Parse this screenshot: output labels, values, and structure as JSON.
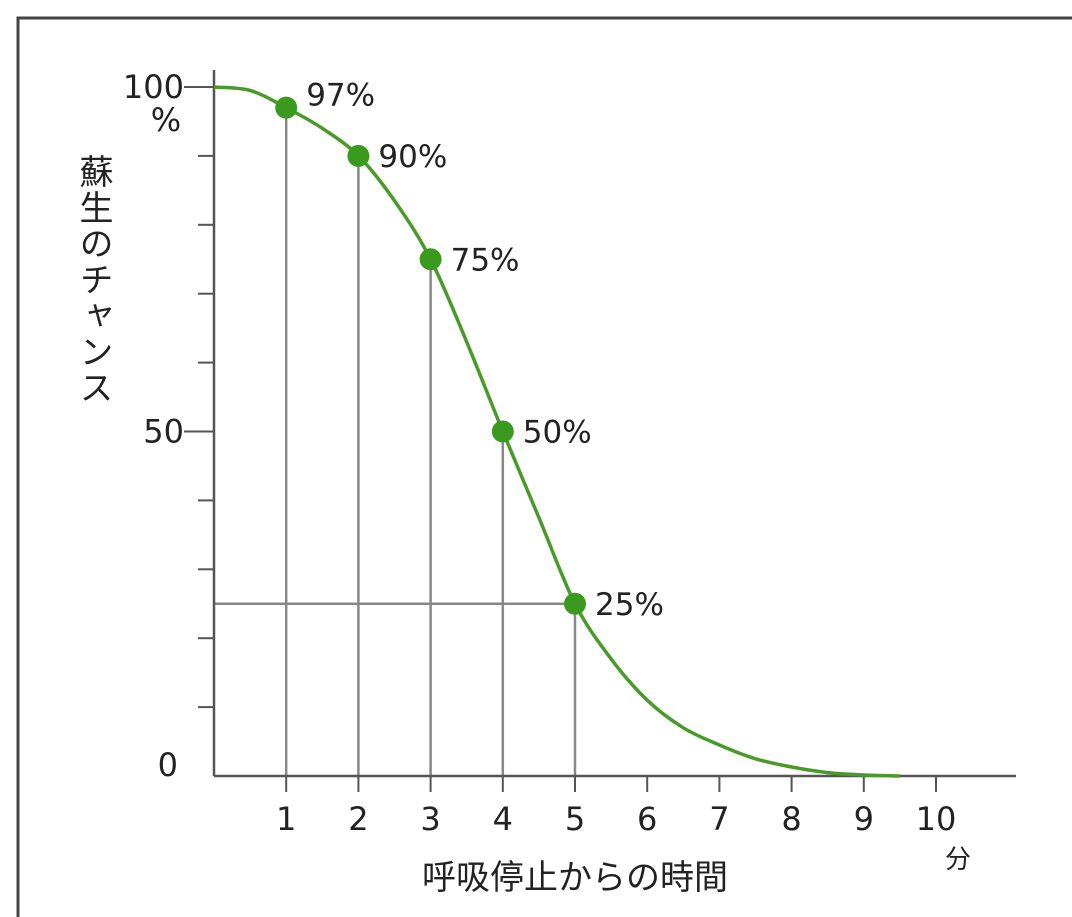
{
  "chart_data": {
    "type": "line",
    "title": "",
    "xlabel": "呼吸停止からの時間",
    "ylabel": "蘇生のチャンス",
    "x_unit": "分",
    "y_unit": "%",
    "xlim": [
      0,
      11
    ],
    "ylim": [
      0,
      100
    ],
    "x_ticks": [
      "1",
      "2",
      "3",
      "4",
      "5",
      "6",
      "7",
      "8",
      "9",
      "10"
    ],
    "y_tick_labels": [
      {
        "value": 100,
        "label": "100"
      },
      {
        "value": 50,
        "label": "50"
      },
      {
        "value": 0,
        "label": "0"
      }
    ],
    "y_minor_ticks": [
      10,
      20,
      30,
      40,
      60,
      70,
      80,
      90
    ],
    "curve": {
      "color": "#4a9a2a",
      "x": [
        0,
        0.5,
        1,
        1.5,
        2,
        2.5,
        3,
        3.5,
        4,
        4.5,
        5,
        5.5,
        6,
        6.5,
        7,
        7.5,
        8,
        8.5,
        9,
        9.5
      ],
      "y": [
        100,
        99.5,
        97,
        94,
        90,
        83.5,
        75,
        63,
        50,
        37.5,
        25,
        17,
        11,
        7,
        4.5,
        2.5,
        1.3,
        0.5,
        0.15,
        0
      ]
    },
    "points": [
      {
        "x": 1,
        "y": 97,
        "label": "97%"
      },
      {
        "x": 2,
        "y": 90,
        "label": "90%"
      },
      {
        "x": 3,
        "y": 75,
        "label": "75%"
      },
      {
        "x": 4,
        "y": 50,
        "label": "50%"
      },
      {
        "x": 5,
        "y": 25,
        "label": "25%"
      }
    ],
    "reference_line_y": 25,
    "marker_color": "#3a9a1e",
    "grid": false,
    "legend": "none"
  }
}
